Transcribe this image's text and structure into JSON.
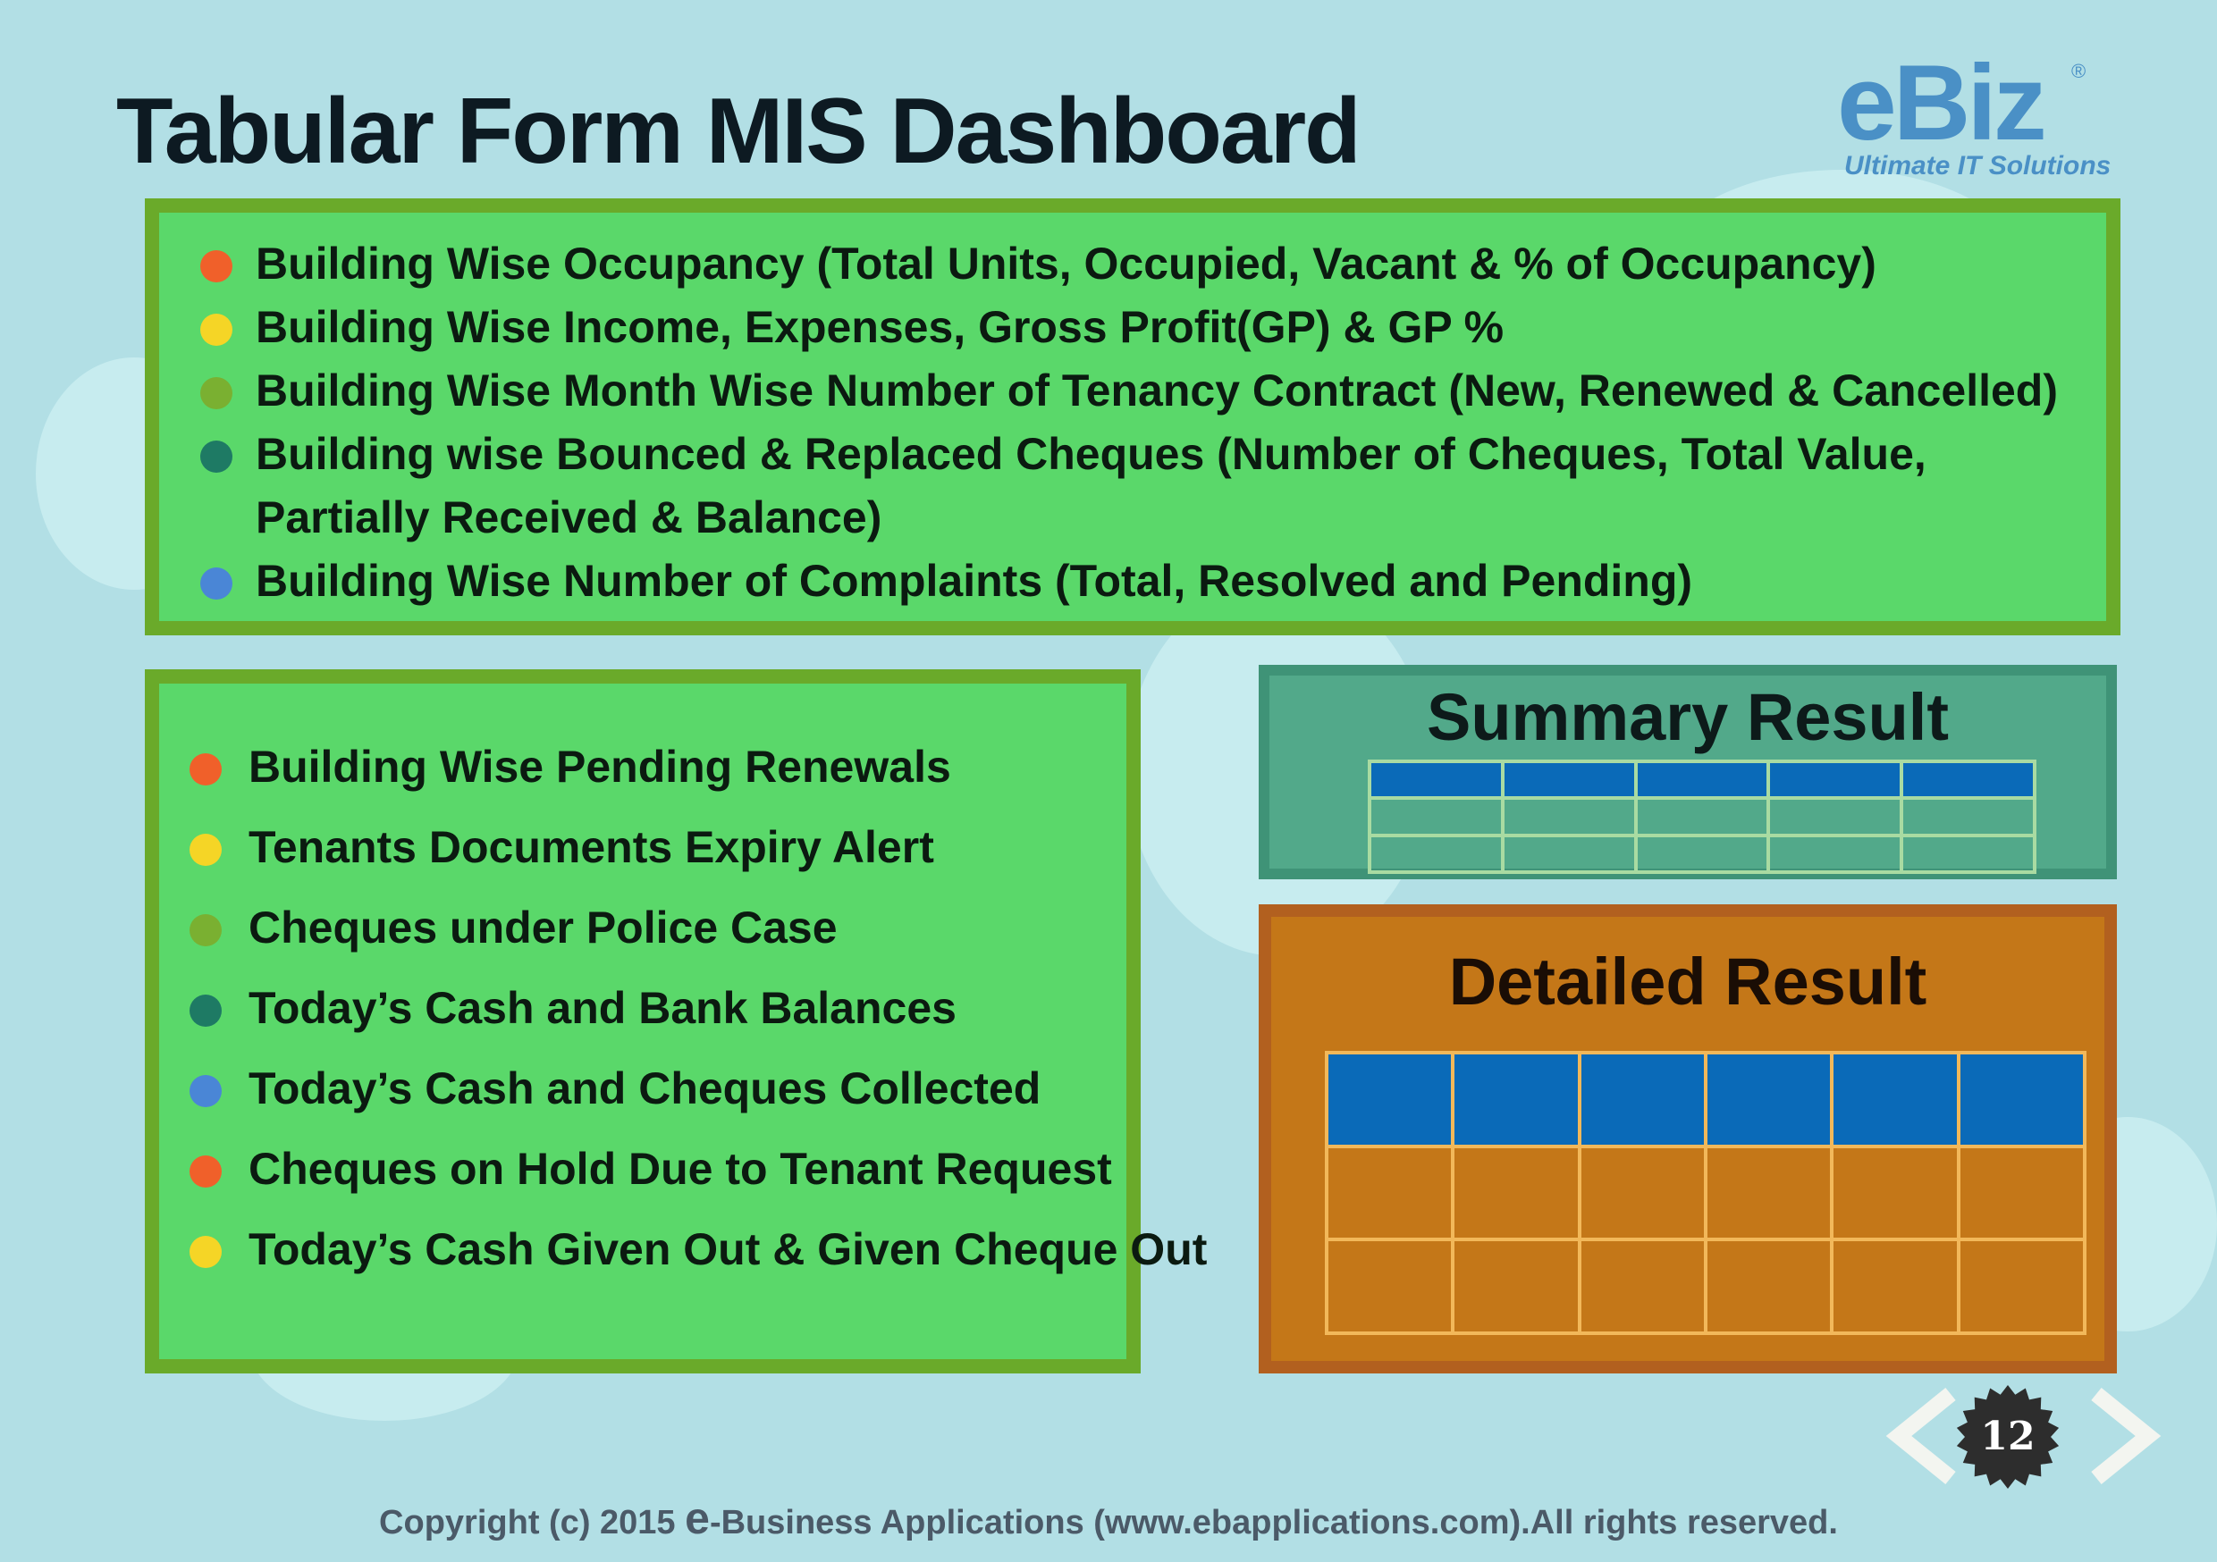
{
  "slide": {
    "title": "Tabular Form MIS Dashboard",
    "page_number": "12"
  },
  "logo": {
    "mark_e": "e",
    "mark_biz": "Biz",
    "registered": "®",
    "tagline": "Ultimate IT Solutions"
  },
  "top_list": [
    {
      "text": "Building Wise Occupancy (Total Units, Occupied, Vacant & % of Occupancy)",
      "color": "#f0602a"
    },
    {
      "text": "Building Wise Income, Expenses, Gross Profit(GP) & GP %",
      "color": "#f5d526"
    },
    {
      "text": "Building Wise Month Wise Number of Tenancy Contract (New, Renewed & Cancelled)",
      "color": "#7ab031"
    },
    {
      "text": "Building wise Bounced & Replaced Cheques (Number of Cheques, Total Value,",
      "color": "#1e7a64"
    },
    {
      "text": "Partially Received & Balance)",
      "color": ""
    },
    {
      "text": "Building Wise Number of Complaints (Total, Resolved and Pending)",
      "color": "#4a86d6"
    }
  ],
  "left_list": [
    {
      "text": "Building Wise Pending Renewals",
      "color": "#f0602a"
    },
    {
      "text": "Tenants Documents Expiry Alert",
      "color": "#f5d526"
    },
    {
      "text": "Cheques under Police Case",
      "color": "#7ab031"
    },
    {
      "text": "Today’s Cash and Bank Balances",
      "color": "#1e7a64"
    },
    {
      "text": "Today’s Cash and Cheques Collected",
      "color": "#4a86d6"
    },
    {
      "text": "Cheques on Hold Due to Tenant Request",
      "color": "#f0602a"
    },
    {
      "text": "Today’s Cash Given Out & Given Cheque Out",
      "color": "#f5d526"
    }
  ],
  "summary": {
    "title": "Summary Result",
    "rows": 3,
    "cols": 5
  },
  "detail": {
    "title": "Detailed Result",
    "rows": 3,
    "cols": 6
  },
  "footer": {
    "prefix": "Copyright (c) 2015 ",
    "e_mark": "e",
    "suffix": "-Business Applications (www.ebapplications.com).All rights reserved."
  },
  "icons": {
    "prev": "chevron-left-icon",
    "next": "chevron-right-icon",
    "badge": "starburst-badge-icon"
  }
}
